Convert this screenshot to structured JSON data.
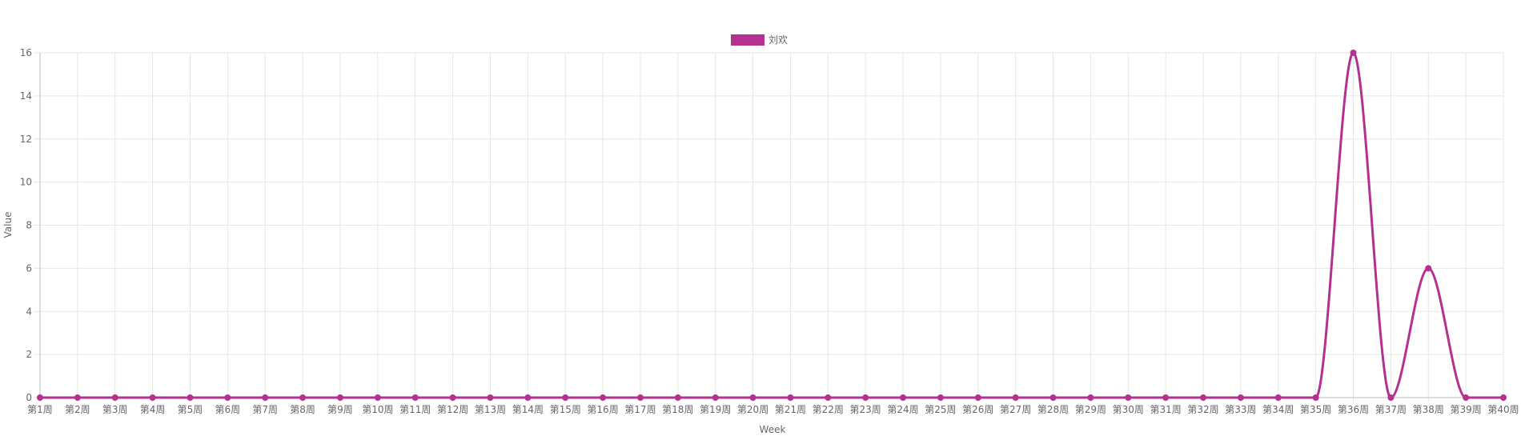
{
  "chart_data": {
    "type": "line",
    "categories": [
      "第1周",
      "第2周",
      "第3周",
      "第4周",
      "第5周",
      "第6周",
      "第7周",
      "第8周",
      "第9周",
      "第10周",
      "第11周",
      "第12周",
      "第13周",
      "第14周",
      "第15周",
      "第16周",
      "第17周",
      "第18周",
      "第19周",
      "第20周",
      "第21周",
      "第22周",
      "第23周",
      "第24周",
      "第25周",
      "第26周",
      "第27周",
      "第28周",
      "第29周",
      "第30周",
      "第31周",
      "第32周",
      "第33周",
      "第34周",
      "第35周",
      "第36周",
      "第37周",
      "第38周",
      "第39周",
      "第40周"
    ],
    "series": [
      {
        "name": "刘欢",
        "color": "#b5318f",
        "values": [
          0,
          0,
          0,
          0,
          0,
          0,
          0,
          0,
          0,
          0,
          0,
          0,
          0,
          0,
          0,
          0,
          0,
          0,
          0,
          0,
          0,
          0,
          0,
          0,
          0,
          0,
          0,
          0,
          0,
          0,
          0,
          0,
          0,
          0,
          0,
          16,
          0,
          6,
          0,
          0
        ]
      }
    ],
    "xlabel": "Week",
    "ylabel": "Value",
    "ylim": [
      0,
      16
    ],
    "yticks": [
      0,
      2,
      4,
      6,
      8,
      10,
      12,
      14,
      16
    ],
    "grid": true,
    "legend": "top-center"
  }
}
